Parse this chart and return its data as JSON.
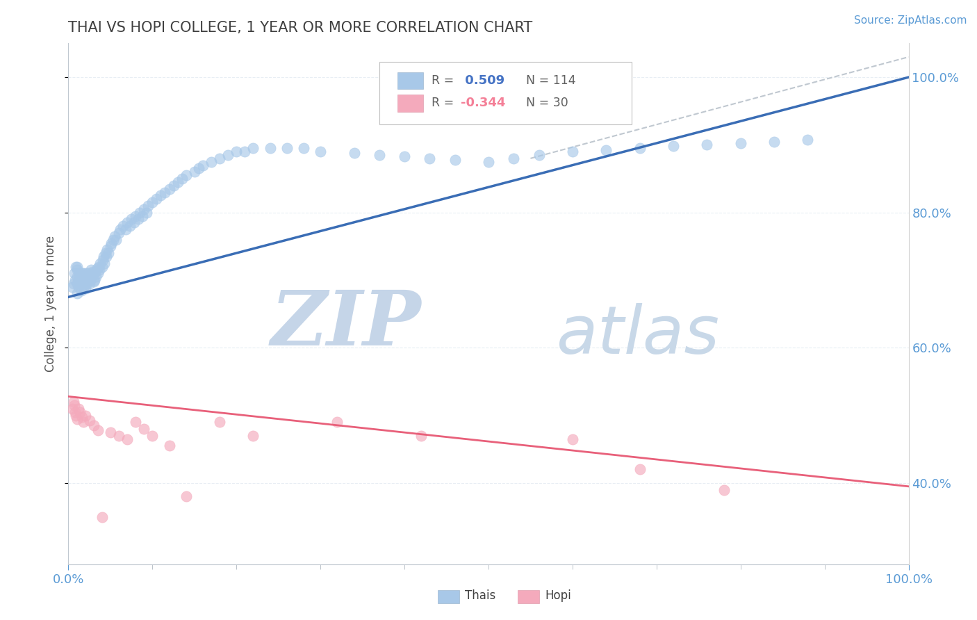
{
  "title": "THAI VS HOPI COLLEGE, 1 YEAR OR MORE CORRELATION CHART",
  "source_text": "Source: ZipAtlas.com",
  "ylabel": "College, 1 year or more",
  "xlim": [
    0.0,
    1.0
  ],
  "ylim": [
    0.28,
    1.05
  ],
  "xtick_positions": [
    0.0,
    1.0
  ],
  "xtick_labels": [
    "0.0%",
    "100.0%"
  ],
  "ytick_vals": [
    0.4,
    0.6,
    0.8,
    1.0
  ],
  "ytick_labels": [
    "40.0%",
    "60.0%",
    "80.0%",
    "100.0%"
  ],
  "thai_R": 0.509,
  "thai_N": 114,
  "hopi_R": -0.344,
  "hopi_N": 30,
  "thai_color": "#a8c8e8",
  "hopi_color": "#f4aabc",
  "thai_line_color": "#3a6db5",
  "hopi_line_color": "#e8607a",
  "background_color": "#ffffff",
  "watermark_color": "#d0dff0",
  "title_color": "#404040",
  "tick_color": "#5b9bd5",
  "source_color": "#5b9bd5",
  "grid_color": "#e8eef4",
  "dashed_line_color": "#c0c8d0",
  "legend_box_edge": "#c0c0c0",
  "legend_R_thai_color": "#4472c4",
  "legend_R_hopi_color": "#f48098",
  "legend_text_color": "#606060",
  "thai_line_start_x": 0.0,
  "thai_line_start_y": 0.675,
  "thai_line_end_x": 1.0,
  "thai_line_end_y": 1.0,
  "hopi_line_start_x": 0.0,
  "hopi_line_start_y": 0.528,
  "hopi_line_end_x": 1.0,
  "hopi_line_end_y": 0.395,
  "thai_scatter_x": [
    0.005,
    0.006,
    0.007,
    0.008,
    0.009,
    0.01,
    0.01,
    0.01,
    0.01,
    0.01,
    0.012,
    0.012,
    0.013,
    0.013,
    0.014,
    0.015,
    0.015,
    0.016,
    0.016,
    0.017,
    0.018,
    0.018,
    0.018,
    0.019,
    0.02,
    0.02,
    0.02,
    0.021,
    0.022,
    0.022,
    0.023,
    0.024,
    0.025,
    0.025,
    0.026,
    0.027,
    0.028,
    0.029,
    0.03,
    0.03,
    0.031,
    0.032,
    0.033,
    0.034,
    0.035,
    0.036,
    0.037,
    0.038,
    0.04,
    0.041,
    0.042,
    0.043,
    0.044,
    0.045,
    0.046,
    0.048,
    0.05,
    0.051,
    0.053,
    0.055,
    0.057,
    0.06,
    0.062,
    0.065,
    0.068,
    0.07,
    0.073,
    0.075,
    0.078,
    0.08,
    0.083,
    0.085,
    0.088,
    0.09,
    0.093,
    0.095,
    0.1,
    0.105,
    0.11,
    0.115,
    0.12,
    0.125,
    0.13,
    0.135,
    0.14,
    0.15,
    0.155,
    0.16,
    0.17,
    0.18,
    0.19,
    0.2,
    0.21,
    0.22,
    0.24,
    0.26,
    0.28,
    0.3,
    0.34,
    0.37,
    0.4,
    0.43,
    0.46,
    0.5,
    0.53,
    0.56,
    0.6,
    0.64,
    0.68,
    0.72,
    0.76,
    0.8,
    0.84,
    0.88
  ],
  "thai_scatter_y": [
    0.69,
    0.695,
    0.71,
    0.7,
    0.72,
    0.68,
    0.695,
    0.705,
    0.715,
    0.72,
    0.69,
    0.7,
    0.695,
    0.71,
    0.705,
    0.685,
    0.695,
    0.7,
    0.71,
    0.705,
    0.69,
    0.7,
    0.71,
    0.705,
    0.688,
    0.695,
    0.705,
    0.71,
    0.695,
    0.705,
    0.7,
    0.71,
    0.695,
    0.708,
    0.7,
    0.715,
    0.705,
    0.712,
    0.698,
    0.71,
    0.7,
    0.712,
    0.705,
    0.718,
    0.71,
    0.72,
    0.715,
    0.725,
    0.72,
    0.73,
    0.735,
    0.725,
    0.74,
    0.735,
    0.745,
    0.74,
    0.75,
    0.755,
    0.76,
    0.765,
    0.76,
    0.77,
    0.775,
    0.78,
    0.775,
    0.785,
    0.78,
    0.79,
    0.785,
    0.795,
    0.79,
    0.8,
    0.795,
    0.805,
    0.8,
    0.81,
    0.815,
    0.82,
    0.825,
    0.83,
    0.835,
    0.84,
    0.845,
    0.85,
    0.855,
    0.86,
    0.865,
    0.87,
    0.875,
    0.88,
    0.885,
    0.89,
    0.89,
    0.895,
    0.895,
    0.895,
    0.895,
    0.89,
    0.888,
    0.885,
    0.883,
    0.88,
    0.878,
    0.875,
    0.88,
    0.885,
    0.89,
    0.892,
    0.895,
    0.898,
    0.9,
    0.902,
    0.905,
    0.908
  ],
  "hopi_scatter_x": [
    0.005,
    0.006,
    0.007,
    0.008,
    0.009,
    0.01,
    0.012,
    0.014,
    0.016,
    0.018,
    0.02,
    0.025,
    0.03,
    0.035,
    0.04,
    0.05,
    0.06,
    0.07,
    0.08,
    0.09,
    0.1,
    0.12,
    0.14,
    0.18,
    0.22,
    0.32,
    0.42,
    0.6,
    0.68,
    0.78
  ],
  "hopi_scatter_y": [
    0.51,
    0.52,
    0.515,
    0.505,
    0.5,
    0.495,
    0.51,
    0.505,
    0.498,
    0.49,
    0.5,
    0.492,
    0.485,
    0.478,
    0.35,
    0.475,
    0.47,
    0.465,
    0.49,
    0.48,
    0.47,
    0.455,
    0.38,
    0.49,
    0.47,
    0.49,
    0.47,
    0.465,
    0.42,
    0.39
  ]
}
